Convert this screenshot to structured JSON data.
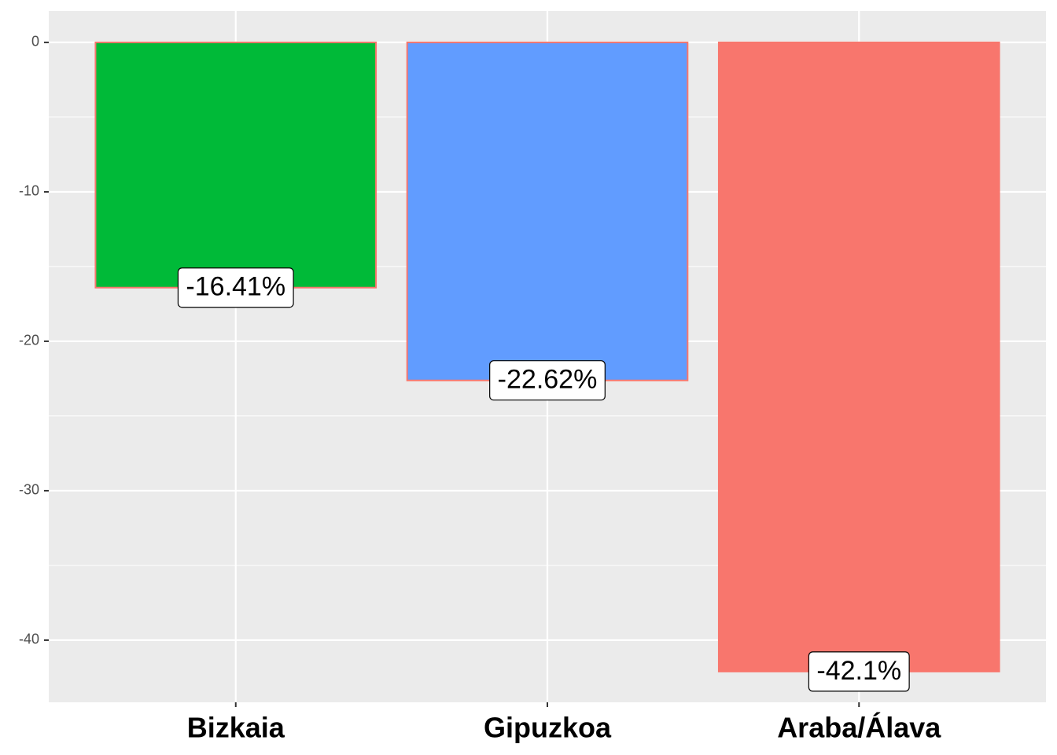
{
  "chart_data": {
    "type": "bar",
    "categories": [
      "Bizkaia",
      "Gipuzkoa",
      "Araba/Álava"
    ],
    "values": [
      -16.41,
      -22.62,
      -42.1
    ],
    "value_labels": [
      "-16.41%",
      "-22.62%",
      "-42.1%"
    ],
    "colors": [
      "#00BA38",
      "#619CFF",
      "#F8766D"
    ],
    "outline": "#F8766D",
    "ylim": [
      -44.16,
      2.1
    ],
    "yticks": [
      0,
      -10,
      -20,
      -30,
      -40
    ],
    "grid": true
  }
}
